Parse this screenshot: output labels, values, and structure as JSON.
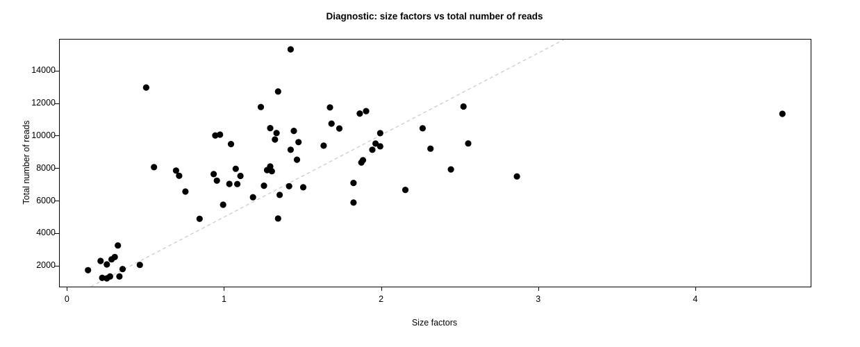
{
  "chart_data": {
    "type": "scatter",
    "title": "Diagnostic: size factors vs total number of reads",
    "xlabel": "Size factors",
    "ylabel": "Total number of reads",
    "x_ticks": [
      0,
      1,
      2,
      3,
      4
    ],
    "y_ticks": [
      2000,
      4000,
      6000,
      8000,
      10000,
      12000,
      14000
    ],
    "xlim": [
      -0.05,
      4.73
    ],
    "ylim": [
      750,
      15950
    ],
    "grid": false,
    "legend": null,
    "point_color": "#000000",
    "reference_line": {
      "style": "dashed",
      "color": "#c8c8c8",
      "x1": 0.148,
      "y1": 750,
      "x2": 3.16,
      "y2": 15950
    },
    "points": [
      [
        0.13,
        1760
      ],
      [
        0.21,
        2330
      ],
      [
        0.22,
        1290
      ],
      [
        0.25,
        2115
      ],
      [
        0.25,
        1260
      ],
      [
        0.27,
        1375
      ],
      [
        0.28,
        2430
      ],
      [
        0.3,
        2570
      ],
      [
        0.32,
        3280
      ],
      [
        0.33,
        1375
      ],
      [
        0.35,
        1830
      ],
      [
        0.46,
        2085
      ],
      [
        0.5,
        13000
      ],
      [
        0.55,
        8100
      ],
      [
        0.69,
        7890
      ],
      [
        0.71,
        7570
      ],
      [
        0.75,
        6600
      ],
      [
        0.84,
        4920
      ],
      [
        0.93,
        7670
      ],
      [
        0.94,
        10050
      ],
      [
        0.95,
        7270
      ],
      [
        0.97,
        10100
      ],
      [
        0.99,
        5790
      ],
      [
        1.03,
        7070
      ],
      [
        1.04,
        9520
      ],
      [
        1.07,
        8000
      ],
      [
        1.08,
        7060
      ],
      [
        1.1,
        7560
      ],
      [
        1.18,
        6250
      ],
      [
        1.23,
        11800
      ],
      [
        1.25,
        6960
      ],
      [
        1.27,
        7920
      ],
      [
        1.29,
        8140
      ],
      [
        1.3,
        7850
      ],
      [
        1.29,
        10500
      ],
      [
        1.33,
        10200
      ],
      [
        1.32,
        9800
      ],
      [
        1.34,
        12750
      ],
      [
        1.34,
        4940
      ],
      [
        1.35,
        6390
      ],
      [
        1.41,
        6930
      ],
      [
        1.42,
        15350
      ],
      [
        1.42,
        9170
      ],
      [
        1.44,
        10330
      ],
      [
        1.46,
        8560
      ],
      [
        1.47,
        9640
      ],
      [
        1.5,
        6860
      ],
      [
        1.63,
        9420
      ],
      [
        1.67,
        11775
      ],
      [
        1.68,
        10780
      ],
      [
        1.73,
        10480
      ],
      [
        1.82,
        7130
      ],
      [
        1.82,
        5920
      ],
      [
        1.86,
        11400
      ],
      [
        1.9,
        11550
      ],
      [
        1.87,
        8390
      ],
      [
        1.88,
        8530
      ],
      [
        1.94,
        9170
      ],
      [
        1.96,
        9550
      ],
      [
        1.99,
        9380
      ],
      [
        1.99,
        10190
      ],
      [
        2.15,
        6700
      ],
      [
        2.26,
        10490
      ],
      [
        2.31,
        9240
      ],
      [
        2.44,
        7960
      ],
      [
        2.52,
        11830
      ],
      [
        2.55,
        9560
      ],
      [
        2.86,
        7530
      ],
      [
        4.55,
        11380
      ]
    ]
  }
}
